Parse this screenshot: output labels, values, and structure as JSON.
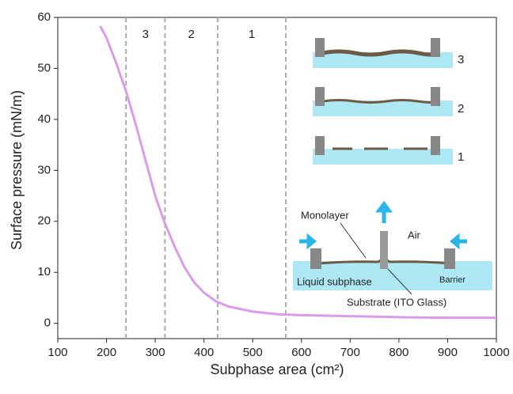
{
  "chart_data": {
    "type": "line",
    "x_label": "Subphase area (cm²)",
    "y_label": "Surface pressure (mN/m)",
    "x": [
      187,
      200,
      220,
      240,
      260,
      280,
      300,
      320,
      340,
      360,
      380,
      400,
      425,
      450,
      500,
      550,
      600,
      700,
      800,
      900,
      1000
    ],
    "series": [
      {
        "color": "#d89ce8",
        "values": [
          58.3,
          56,
          51,
          45.5,
          39,
          32,
          25,
          19.5,
          15,
          11,
          8,
          6,
          4.3,
          3.3,
          2.3,
          1.8,
          1.6,
          1.4,
          1.2,
          1.1,
          1.1
        ]
      }
    ],
    "xlim": [
      100,
      1000
    ],
    "xticks": [
      100,
      200,
      300,
      400,
      500,
      600,
      700,
      800,
      900,
      1000
    ],
    "ylim": [
      -3,
      60
    ],
    "yticks": [
      0,
      10,
      20,
      30,
      40,
      50,
      60
    ],
    "vlines": [
      240,
      320,
      428,
      568
    ],
    "region_labels": [
      "3",
      "2",
      "1"
    ]
  },
  "inset": {
    "stack_labels": [
      "3",
      "2",
      "1"
    ],
    "monolayer": "Monolayer",
    "air": "Air",
    "liquid": "Liquid subphase",
    "barrier": "Barrier",
    "substrate": "Substrate (ITO Glass)"
  }
}
